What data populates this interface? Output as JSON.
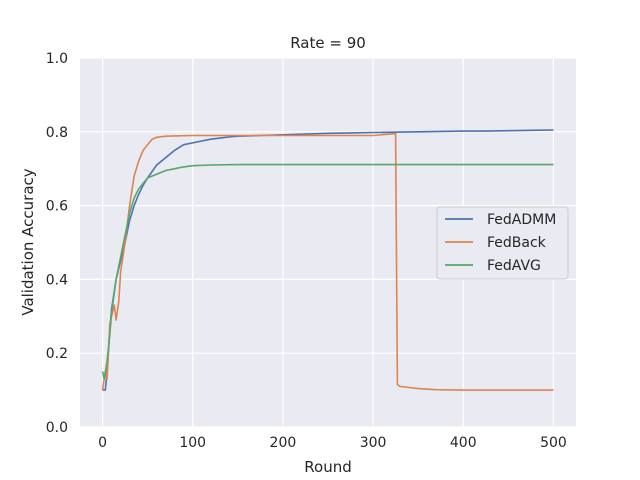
{
  "chart_data": {
    "type": "line",
    "title": "Rate = 90",
    "xlabel": "Round",
    "ylabel": "Validation Accuracy",
    "xlim": [
      -25,
      525
    ],
    "ylim": [
      0.0,
      1.0
    ],
    "xticks": [
      0,
      100,
      200,
      300,
      400,
      500
    ],
    "xtick_labels": [
      "0",
      "100",
      "200",
      "300",
      "400",
      "500"
    ],
    "yticks": [
      0.0,
      0.2,
      0.4,
      0.6,
      0.8,
      1.0
    ],
    "ytick_labels": [
      "0.0",
      "0.2",
      "0.4",
      "0.6",
      "0.8",
      "1.0"
    ],
    "grid": true,
    "legend_position": "center-right",
    "series": [
      {
        "name": "FedADMM",
        "color": "#4c72b0",
        "x": [
          0,
          3,
          5,
          8,
          10,
          15,
          20,
          25,
          30,
          35,
          40,
          45,
          50,
          60,
          70,
          80,
          90,
          100,
          110,
          120,
          130,
          140,
          150,
          175,
          200,
          225,
          250,
          275,
          300,
          325,
          350,
          375,
          400,
          425,
          450,
          475,
          500
        ],
        "y": [
          0.1,
          0.1,
          0.15,
          0.26,
          0.32,
          0.4,
          0.45,
          0.5,
          0.56,
          0.6,
          0.63,
          0.655,
          0.675,
          0.71,
          0.73,
          0.75,
          0.765,
          0.77,
          0.775,
          0.78,
          0.783,
          0.786,
          0.788,
          0.79,
          0.792,
          0.794,
          0.796,
          0.797,
          0.798,
          0.799,
          0.8,
          0.801,
          0.802,
          0.802,
          0.803,
          0.804,
          0.805
        ]
      },
      {
        "name": "FedBack",
        "color": "#dd8452",
        "x": [
          0,
          3,
          5,
          8,
          10,
          13,
          15,
          18,
          20,
          25,
          30,
          35,
          40,
          45,
          50,
          55,
          60,
          70,
          80,
          100,
          150,
          200,
          250,
          300,
          325,
          327,
          330,
          340,
          350,
          370,
          400,
          450,
          500
        ],
        "y": [
          0.1,
          0.15,
          0.13,
          0.28,
          0.3,
          0.33,
          0.29,
          0.34,
          0.42,
          0.5,
          0.6,
          0.68,
          0.72,
          0.75,
          0.765,
          0.78,
          0.785,
          0.788,
          0.789,
          0.79,
          0.79,
          0.79,
          0.79,
          0.79,
          0.795,
          0.115,
          0.11,
          0.107,
          0.104,
          0.101,
          0.1,
          0.1,
          0.1
        ]
      },
      {
        "name": "FedAVG",
        "color": "#55a868",
        "x": [
          0,
          2,
          5,
          8,
          10,
          15,
          20,
          25,
          30,
          35,
          40,
          45,
          50,
          60,
          70,
          80,
          90,
          100,
          120,
          150,
          200,
          300,
          400,
          500
        ],
        "y": [
          0.15,
          0.13,
          0.18,
          0.25,
          0.31,
          0.4,
          0.46,
          0.52,
          0.58,
          0.62,
          0.645,
          0.66,
          0.675,
          0.685,
          0.695,
          0.7,
          0.705,
          0.708,
          0.71,
          0.711,
          0.711,
          0.711,
          0.711,
          0.711
        ]
      }
    ]
  }
}
